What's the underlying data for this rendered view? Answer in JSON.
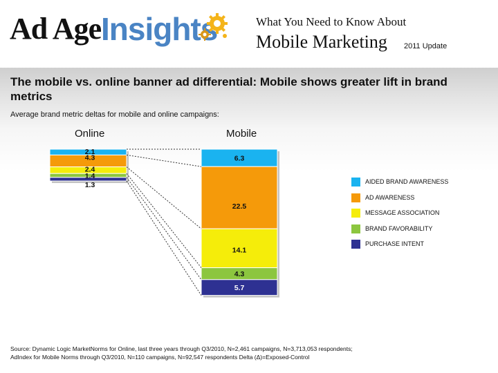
{
  "header": {
    "logo_part1": "Ad Age",
    "logo_part2": "Insights",
    "top_line": "What You Need to Know About",
    "main_line": "Mobile Marketing",
    "update": "2011 Update"
  },
  "colors": {
    "aided_brand_awareness": "#1ab3f0",
    "ad_awareness": "#f59a0a",
    "message_association": "#f5ed0a",
    "brand_favorability": "#8cc63f",
    "purchase_intent": "#2e3192",
    "logo_blue": "#4a84c4",
    "gear_gold": "#f4b41a"
  },
  "chart_data": {
    "type": "bar",
    "stacked": true,
    "title": "The mobile vs. online banner ad differential: Mobile shows greater lift in brand metrics",
    "subtitle": "Average brand metric deltas for mobile and online campaigns:",
    "categories": [
      "Online",
      "Mobile"
    ],
    "series": [
      {
        "name": "AIDED BRAND AWARENESS",
        "values": [
          2.1,
          6.3
        ],
        "color": "#1ab3f0"
      },
      {
        "name": "AD AWARENESS",
        "values": [
          4.3,
          22.5
        ],
        "color": "#f59a0a"
      },
      {
        "name": "MESSAGE ASSOCIATION",
        "values": [
          2.4,
          14.1
        ],
        "color": "#f5ed0a"
      },
      {
        "name": "BRAND FAVORABILITY",
        "values": [
          1.4,
          4.3
        ],
        "color": "#8cc63f"
      },
      {
        "name": "PURCHASE INTENT",
        "values": [
          1.3,
          5.7
        ],
        "color": "#2e3192"
      }
    ],
    "legend_position": "right",
    "grid": false
  },
  "source": {
    "line1": "Source:  Dynamic Logic MarketNorms for Online, last three years through Q3/2010, N=2,461 campaigns, N=3,713,053 respondents;",
    "line2": "AdIndex for Mobile Norms through Q3/2010, N=110 campaigns, N=92,547 respondents  Delta (Δ)=Exposed-Control"
  }
}
